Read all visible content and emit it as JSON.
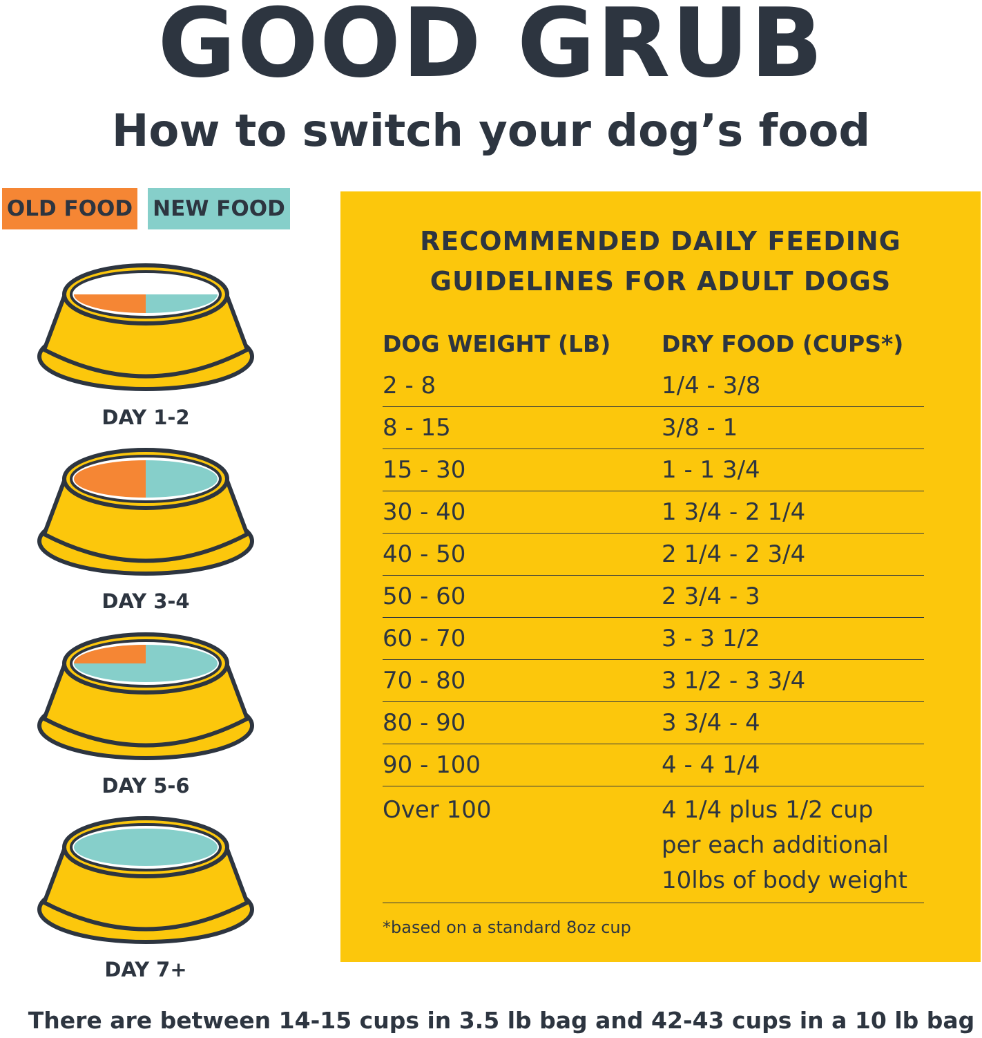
{
  "header": {
    "brand": "GOOD GRUB",
    "subtitle": "How to switch your dog’s food"
  },
  "legend": {
    "old_label": "OLD FOOD",
    "new_label": "NEW FOOD",
    "old_color": "#f58634",
    "new_color": "#86cfca"
  },
  "colors": {
    "text": "#2d3540",
    "panel": "#fcc70c",
    "bowl": "#fcc70c"
  },
  "transition": [
    {
      "label": "DAY 1-2",
      "new_fraction": 0.5,
      "old_fraction": 0.5,
      "fill_level": "half"
    },
    {
      "label": "DAY 3-4",
      "new_fraction": 0.5,
      "old_fraction": 0.5,
      "fill_level": "full"
    },
    {
      "label": "DAY 5-6",
      "new_fraction": 0.75,
      "old_fraction": 0.25,
      "fill_level": "full"
    },
    {
      "label": "DAY 7+",
      "new_fraction": 1.0,
      "old_fraction": 0.0,
      "fill_level": "full"
    }
  ],
  "guidelines": {
    "title_line1": "RECOMMENDED DAILY FEEDING",
    "title_line2": "GUIDELINES FOR ADULT DOGS",
    "col_weight": "DOG WEIGHT (LB)",
    "col_food": "DRY FOOD (CUPS*)",
    "rows": [
      {
        "weight": "2 - 8",
        "food": "1/4 - 3/8"
      },
      {
        "weight": "8 - 15",
        "food": "3/8 - 1"
      },
      {
        "weight": "15 - 30",
        "food": "1 - 1 3/4"
      },
      {
        "weight": "30 - 40",
        "food": "1 3/4 - 2 1/4"
      },
      {
        "weight": "40 - 50",
        "food": "2 1/4 - 2 3/4"
      },
      {
        "weight": "50 - 60",
        "food": "2 3/4 - 3"
      },
      {
        "weight": "60 - 70",
        "food": "3 - 3 1/2"
      },
      {
        "weight": "70 - 80",
        "food": "3 1/2 - 3 3/4"
      },
      {
        "weight": "80 - 90",
        "food": "3 3/4 - 4"
      },
      {
        "weight": "90 - 100",
        "food": "4 - 4 1/4"
      }
    ],
    "last_row": {
      "weight": "Over 100",
      "food_line1": "4 1/4 plus 1/2 cup",
      "food_line2": "per each additional",
      "food_line3": "10lbs of body weight"
    },
    "footnote": "*based on a standard 8oz cup"
  },
  "bag_note": "There are between 14-15 cups in 3.5 lb bag and 42-43 cups in a 10 lb bag"
}
